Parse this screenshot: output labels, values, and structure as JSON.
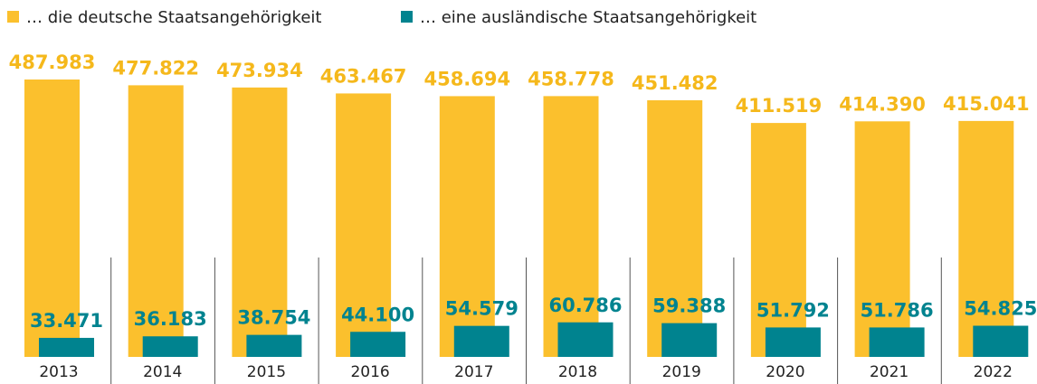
{
  "chart_data": {
    "type": "bar",
    "categories": [
      "2013",
      "2014",
      "2015",
      "2016",
      "2017",
      "2018",
      "2019",
      "2020",
      "2021",
      "2022"
    ],
    "series": [
      {
        "name": "… die deutsche Staatsangehörigkeit",
        "color": "#fbc02d",
        "values": [
          487983,
          477822,
          473934,
          463467,
          458694,
          458778,
          451482,
          411519,
          414390,
          415041
        ],
        "value_labels": [
          "487.983",
          "477.822",
          "473.934",
          "463.467",
          "458.694",
          "458.778",
          "451.482",
          "411.519",
          "414.390",
          "415.041"
        ]
      },
      {
        "name": "… eine ausländische Staatsangehörigkeit",
        "color": "#00838f",
        "values": [
          33471,
          36183,
          38754,
          44100,
          54579,
          60786,
          59388,
          51792,
          51786,
          54825
        ],
        "value_labels": [
          "33.471",
          "36.183",
          "38.754",
          "44.100",
          "54.579",
          "60.786",
          "59.388",
          "51.792",
          "51.786",
          "54.825"
        ]
      }
    ]
  }
}
